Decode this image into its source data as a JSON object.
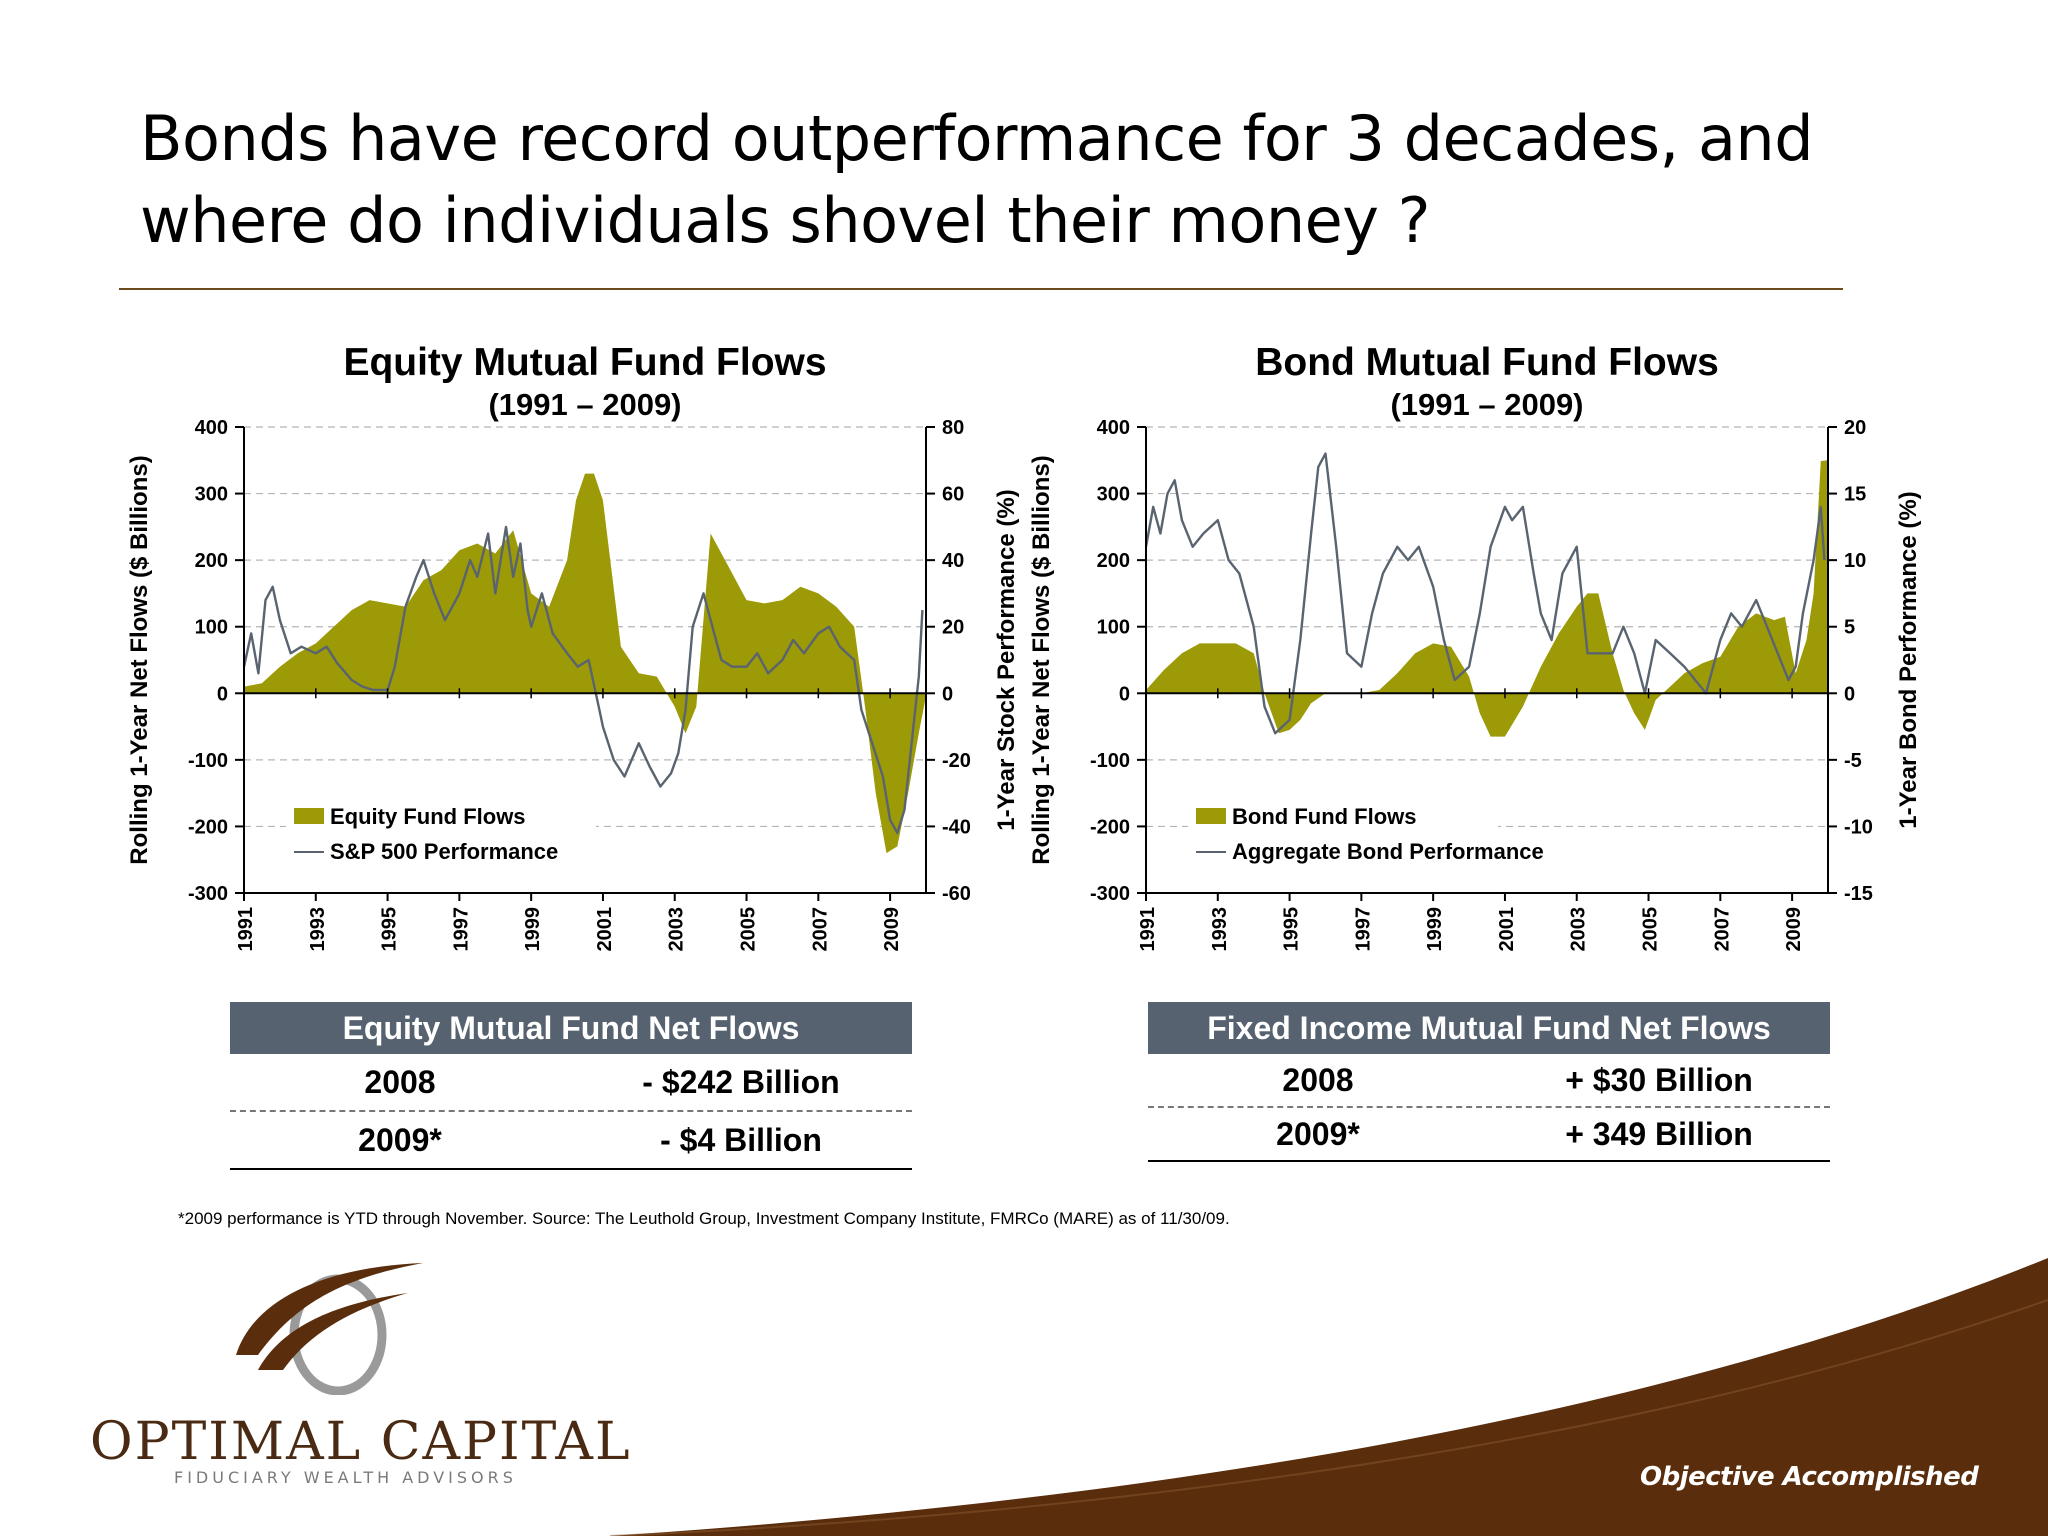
{
  "slide": {
    "title": "Bonds have record outperformance for 3 decades, and where do individuals shovel their money ?",
    "footnote": "*2009 performance is YTD through November. Source: The Leuthold Group, Investment Company Institute, FMRCo (MARE) as of 11/30/09.",
    "brand": {
      "name": "OPTIMAL CAPITAL",
      "subtitle": "FIDUCIARY WEALTH ADVISORS",
      "tagline": "Objective Accomplished"
    },
    "colors": {
      "fill": "#9c9a06",
      "line": "#5a6470",
      "table_header": "#566270",
      "brand": "#5a2d0c"
    }
  },
  "tables": [
    {
      "header": "Equity Mutual Fund Net Flows",
      "rows": [
        {
          "year": "2008",
          "value": "- $242 Billion"
        },
        {
          "year": "2009*",
          "value": "- $4 Billion"
        }
      ]
    },
    {
      "header": "Fixed Income Mutual Fund Net Flows",
      "rows": [
        {
          "year": "2008",
          "value": "+ $30 Billion"
        },
        {
          "year": "2009*",
          "value": "+ 349 Billion"
        }
      ]
    }
  ],
  "chart_data": [
    {
      "type": "area",
      "title": "Equity Mutual Fund Flows",
      "subtitle": "(1991 – 2009)",
      "ylabel": "Rolling 1-Year Net Flows ($ Billions)",
      "y2label": "1-Year Stock Performance (%)",
      "ylim": [
        -300,
        400
      ],
      "y2lim": [
        -60,
        80
      ],
      "yticks": [
        400,
        300,
        200,
        100,
        0,
        -100,
        -200,
        -300
      ],
      "y2ticks": [
        80,
        60,
        40,
        20,
        0,
        -20,
        -40,
        -60
      ],
      "xlim": [
        1991,
        2010
      ],
      "xticks": [
        "1991",
        "1993",
        "1995",
        "1997",
        "1999",
        "2001",
        "2003",
        "2005",
        "2007",
        "2009"
      ],
      "grid": true,
      "legend": "bottom-left",
      "series": [
        {
          "name": "Equity Fund Flows",
          "kind": "area",
          "axis": "left",
          "x": [
            1991,
            1991.5,
            1992,
            1992.5,
            1993,
            1993.5,
            1994,
            1994.5,
            1995,
            1995.5,
            1996,
            1996.5,
            1997,
            1997.5,
            1998,
            1998.5,
            1999,
            1999.5,
            2000,
            2000.25,
            2000.5,
            2000.75,
            2001,
            2001.5,
            2002,
            2002.5,
            2003,
            2003.3,
            2003.6,
            2004,
            2004.5,
            2005,
            2005.5,
            2006,
            2006.5,
            2007,
            2007.5,
            2008,
            2008.3,
            2008.6,
            2008.9,
            2009.2,
            2009.5,
            2009.8,
            2010
          ],
          "values": [
            10,
            15,
            40,
            60,
            75,
            100,
            125,
            140,
            135,
            130,
            170,
            185,
            215,
            225,
            210,
            245,
            150,
            130,
            200,
            290,
            330,
            330,
            290,
            70,
            30,
            25,
            -20,
            -60,
            -20,
            240,
            190,
            140,
            135,
            140,
            160,
            150,
            130,
            100,
            -20,
            -150,
            -240,
            -230,
            -150,
            -60,
            -4
          ]
        },
        {
          "name": "S&P 500 Performance",
          "kind": "line",
          "axis": "right",
          "x": [
            1991,
            1991.2,
            1991.4,
            1991.6,
            1991.8,
            1992,
            1992.3,
            1992.6,
            1993,
            1993.3,
            1993.6,
            1994,
            1994.3,
            1994.6,
            1995,
            1995.2,
            1995.5,
            1995.8,
            1996,
            1996.3,
            1996.6,
            1997,
            1997.3,
            1997.5,
            1997.8,
            1998,
            1998.3,
            1998.5,
            1998.7,
            1998.9,
            1999,
            1999.3,
            1999.6,
            2000,
            2000.3,
            2000.6,
            2000.9,
            2001,
            2001.3,
            2001.6,
            2002,
            2002.3,
            2002.6,
            2002.9,
            2003.1,
            2003.3,
            2003.5,
            2003.8,
            2004,
            2004.3,
            2004.6,
            2005,
            2005.3,
            2005.6,
            2006,
            2006.3,
            2006.6,
            2007,
            2007.3,
            2007.6,
            2008,
            2008.2,
            2008.5,
            2008.8,
            2009,
            2009.2,
            2009.4,
            2009.6,
            2009.8,
            2009.9
          ],
          "values": [
            8,
            18,
            6,
            28,
            32,
            22,
            12,
            14,
            12,
            14,
            9,
            4,
            2,
            1,
            1,
            8,
            26,
            35,
            40,
            30,
            22,
            30,
            40,
            35,
            48,
            30,
            50,
            35,
            45,
            25,
            20,
            30,
            18,
            12,
            8,
            10,
            -5,
            -10,
            -20,
            -25,
            -15,
            -22,
            -28,
            -24,
            -18,
            -5,
            20,
            30,
            22,
            10,
            8,
            8,
            12,
            6,
            10,
            16,
            12,
            18,
            20,
            14,
            10,
            -5,
            -15,
            -25,
            -38,
            -42,
            -35,
            -15,
            5,
            25
          ]
        }
      ]
    },
    {
      "type": "area",
      "title": "Bond Mutual Fund Flows",
      "subtitle": "(1991 – 2009)",
      "ylabel": "Rolling 1-Year Net Flows ($ Billions)",
      "y2label": "1-Year Bond Performance (%)",
      "ylim": [
        -300,
        400
      ],
      "y2lim": [
        -15,
        20
      ],
      "yticks": [
        400,
        300,
        200,
        100,
        0,
        -100,
        -200,
        -300
      ],
      "y2ticks": [
        20,
        15,
        10,
        5,
        0,
        -5,
        -10,
        -15
      ],
      "xlim": [
        1991,
        2010
      ],
      "xticks": [
        "1991",
        "1993",
        "1995",
        "1997",
        "1999",
        "2001",
        "2003",
        "2005",
        "2007",
        "2009"
      ],
      "grid": true,
      "legend": "bottom-left",
      "series": [
        {
          "name": "Bond Fund Flows",
          "kind": "area",
          "axis": "left",
          "x": [
            1991,
            1991.5,
            1992,
            1992.5,
            1993,
            1993.5,
            1994,
            1994.3,
            1994.7,
            1995,
            1995.3,
            1995.6,
            1996,
            1996.5,
            1997,
            1997.5,
            1998,
            1998.5,
            1999,
            1999.5,
            2000,
            2000.3,
            2000.6,
            2001,
            2001.5,
            2002,
            2002.5,
            2003,
            2003.3,
            2003.6,
            2004,
            2004.3,
            2004.6,
            2004.9,
            2005.2,
            2005.6,
            2006,
            2006.5,
            2007,
            2007.5,
            2008,
            2008.5,
            2008.8,
            2009.1,
            2009.4,
            2009.6,
            2009.8,
            2010
          ],
          "values": [
            5,
            35,
            60,
            75,
            75,
            75,
            60,
            0,
            -60,
            -55,
            -40,
            -15,
            0,
            0,
            0,
            5,
            30,
            60,
            75,
            70,
            25,
            -30,
            -65,
            -65,
            -20,
            40,
            90,
            130,
            150,
            150,
            60,
            5,
            -30,
            -55,
            -10,
            10,
            30,
            45,
            55,
            100,
            120,
            110,
            115,
            30,
            80,
            150,
            349,
            350
          ]
        },
        {
          "name": "Aggregate Bond Performance",
          "kind": "line",
          "axis": "right",
          "x": [
            1991,
            1991.2,
            1991.4,
            1991.6,
            1991.8,
            1992,
            1992.3,
            1992.6,
            1993,
            1993.3,
            1993.6,
            1994,
            1994.3,
            1994.6,
            1995,
            1995.3,
            1995.6,
            1995.8,
            1996,
            1996.3,
            1996.6,
            1997,
            1997.3,
            1997.6,
            1998,
            1998.3,
            1998.6,
            1999,
            1999.3,
            1999.6,
            2000,
            2000.3,
            2000.6,
            2001,
            2001.2,
            2001.5,
            2001.8,
            2002,
            2002.3,
            2002.6,
            2003,
            2003.3,
            2003.6,
            2004,
            2004.3,
            2004.6,
            2004.9,
            2005.2,
            2005.6,
            2006,
            2006.3,
            2006.6,
            2007,
            2007.3,
            2007.6,
            2008,
            2008.3,
            2008.6,
            2008.9,
            2009.1,
            2009.3,
            2009.6,
            2009.8,
            2009.9
          ],
          "values": [
            11,
            14,
            12,
            15,
            16,
            13,
            11,
            12,
            13,
            10,
            9,
            5,
            -1,
            -3,
            -2,
            4,
            12,
            17,
            18,
            11,
            3,
            2,
            6,
            9,
            11,
            10,
            11,
            8,
            4,
            1,
            2,
            6,
            11,
            14,
            13,
            14,
            9,
            6,
            4,
            9,
            11,
            3,
            3,
            3,
            5,
            3,
            0,
            4,
            3,
            2,
            1,
            0,
            4,
            6,
            5,
            7,
            5,
            3,
            1,
            2,
            6,
            10,
            14,
            10
          ]
        }
      ]
    }
  ]
}
